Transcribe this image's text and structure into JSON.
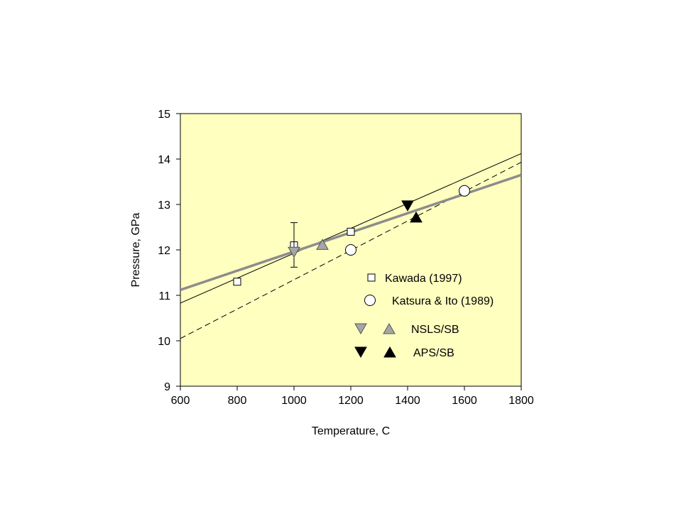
{
  "chart_data": {
    "type": "scatter",
    "title": "",
    "xlabel": "Temperature, C",
    "ylabel": "Pressure, GPa",
    "xlim": [
      600,
      1800
    ],
    "ylim": [
      9,
      15
    ],
    "xticks": [
      600,
      800,
      1000,
      1200,
      1400,
      1600,
      1800
    ],
    "yticks": [
      9,
      10,
      11,
      12,
      13,
      14,
      15
    ],
    "grid": false,
    "plot_background": "#ffffc0",
    "series": [
      {
        "name": "Kawada (1997)",
        "marker": "square",
        "fill": "#ffffff",
        "stroke": "#000000",
        "points": [
          [
            800,
            11.3
          ],
          [
            1000,
            12.1
          ],
          [
            1200,
            12.4
          ]
        ]
      },
      {
        "name": "Katsura & Ito (1989)",
        "marker": "circle",
        "fill": "#ffffff",
        "stroke": "#000000",
        "points": [
          [
            1200,
            12.0
          ],
          [
            1600,
            13.3
          ]
        ]
      },
      {
        "name": "NSLS/SB",
        "marker": [
          "triangle-down",
          "triangle-up"
        ],
        "fill": "#a6a6a6",
        "stroke": "#555555",
        "points_down": [
          [
            1000,
            11.95
          ]
        ],
        "points_up": [
          [
            1100,
            12.12
          ]
        ],
        "error_bars": [
          {
            "x": 1000,
            "y": 11.95,
            "low": 11.62,
            "high": 12.6
          }
        ]
      },
      {
        "name": "APS/SB",
        "marker": [
          "triangle-down",
          "triangle-up"
        ],
        "fill": "#000000",
        "stroke": "#000000",
        "points_down": [
          [
            1400,
            12.97
          ]
        ],
        "points_up": [
          [
            1430,
            12.72
          ]
        ]
      }
    ],
    "lines": [
      {
        "style": "solid-thin",
        "color": "#000000",
        "from": [
          600,
          10.83
        ],
        "to": [
          1800,
          14.12
        ]
      },
      {
        "style": "dashed",
        "color": "#000000",
        "from": [
          600,
          10.05
        ],
        "to": [
          1800,
          13.93
        ]
      },
      {
        "style": "solid-thick",
        "color": "#8c8c8c",
        "from": [
          600,
          11.12
        ],
        "to": [
          1800,
          13.65
        ]
      }
    ],
    "legend": {
      "placement": "lower-right",
      "entries": [
        {
          "label": "Kawada (1997)",
          "markers": [
            "square-white"
          ]
        },
        {
          "label": "Katsura & Ito (1989)",
          "markers": [
            "circle-white"
          ]
        },
        {
          "label": "NSLS/SB",
          "markers": [
            "triangle-down-gray",
            "triangle-up-gray"
          ]
        },
        {
          "label": "APS/SB",
          "markers": [
            "triangle-down-black",
            "triangle-up-black"
          ]
        }
      ]
    }
  }
}
